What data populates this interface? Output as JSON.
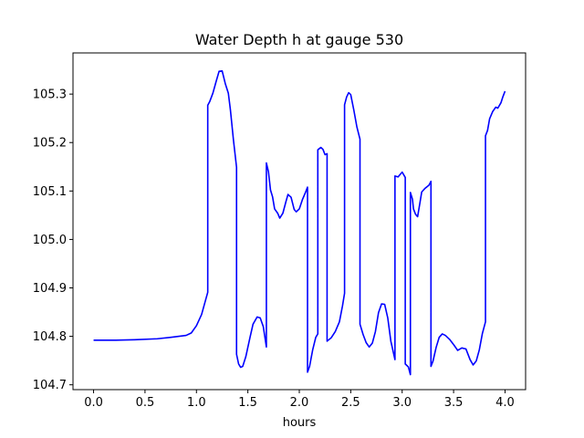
{
  "chart_data": {
    "type": "line",
    "title": "Water Depth h at gauge 530",
    "xlabel": "hours",
    "ylabel": "",
    "xlim": [
      -0.2,
      4.2
    ],
    "ylim": [
      104.69,
      105.385
    ],
    "xticks": [
      0.0,
      0.5,
      1.0,
      1.5,
      2.0,
      2.5,
      3.0,
      3.5,
      4.0
    ],
    "xtick_labels": [
      "0.0",
      "0.5",
      "1.0",
      "1.5",
      "2.0",
      "2.5",
      "3.0",
      "3.5",
      "4.0"
    ],
    "yticks": [
      104.7,
      104.8,
      104.9,
      105.0,
      105.1,
      105.2,
      105.3
    ],
    "ytick_labels": [
      "104.7",
      "104.8",
      "104.9",
      "105.0",
      "105.1",
      "105.2",
      "105.3"
    ],
    "grid": false,
    "legend": "none",
    "series": [
      {
        "color": "#0000ff",
        "points": [
          [
            0.0,
            104.792
          ],
          [
            0.2,
            104.792
          ],
          [
            0.4,
            104.793
          ],
          [
            0.62,
            104.795
          ],
          [
            0.75,
            104.798
          ],
          [
            0.9,
            104.802
          ],
          [
            0.95,
            104.807
          ],
          [
            1.0,
            104.822
          ],
          [
            1.05,
            104.845
          ],
          [
            1.11,
            104.891
          ],
          [
            1.11,
            105.277
          ],
          [
            1.13,
            105.285
          ],
          [
            1.16,
            105.302
          ],
          [
            1.19,
            105.325
          ],
          [
            1.22,
            105.347
          ],
          [
            1.25,
            105.348
          ],
          [
            1.28,
            105.322
          ],
          [
            1.31,
            105.302
          ],
          [
            1.33,
            105.268
          ],
          [
            1.36,
            105.205
          ],
          [
            1.39,
            105.149
          ],
          [
            1.39,
            104.763
          ],
          [
            1.41,
            104.743
          ],
          [
            1.43,
            104.736
          ],
          [
            1.45,
            104.738
          ],
          [
            1.48,
            104.758
          ],
          [
            1.52,
            104.797
          ],
          [
            1.55,
            104.825
          ],
          [
            1.59,
            104.84
          ],
          [
            1.62,
            104.838
          ],
          [
            1.65,
            104.82
          ],
          [
            1.68,
            104.778
          ],
          [
            1.68,
            105.158
          ],
          [
            1.7,
            105.14
          ],
          [
            1.72,
            105.102
          ],
          [
            1.74,
            105.088
          ],
          [
            1.76,
            105.063
          ],
          [
            1.79,
            105.054
          ],
          [
            1.81,
            105.044
          ],
          [
            1.84,
            105.054
          ],
          [
            1.87,
            105.078
          ],
          [
            1.89,
            105.093
          ],
          [
            1.92,
            105.087
          ],
          [
            1.95,
            105.062
          ],
          [
            1.97,
            105.057
          ],
          [
            2.0,
            105.063
          ],
          [
            2.03,
            105.082
          ],
          [
            2.06,
            105.097
          ],
          [
            2.08,
            105.108
          ],
          [
            2.08,
            104.726
          ],
          [
            2.1,
            104.738
          ],
          [
            2.13,
            104.772
          ],
          [
            2.16,
            104.798
          ],
          [
            2.18,
            104.805
          ],
          [
            2.18,
            105.185
          ],
          [
            2.21,
            105.19
          ],
          [
            2.23,
            105.186
          ],
          [
            2.25,
            105.175
          ],
          [
            2.27,
            105.177
          ],
          [
            2.27,
            104.79
          ],
          [
            2.31,
            104.797
          ],
          [
            2.35,
            104.81
          ],
          [
            2.39,
            104.83
          ],
          [
            2.42,
            104.863
          ],
          [
            2.44,
            104.889
          ],
          [
            2.44,
            105.278
          ],
          [
            2.46,
            105.294
          ],
          [
            2.48,
            105.303
          ],
          [
            2.5,
            105.299
          ],
          [
            2.53,
            105.267
          ],
          [
            2.56,
            105.232
          ],
          [
            2.59,
            105.207
          ],
          [
            2.59,
            104.825
          ],
          [
            2.62,
            104.804
          ],
          [
            2.65,
            104.787
          ],
          [
            2.68,
            104.778
          ],
          [
            2.71,
            104.786
          ],
          [
            2.74,
            104.81
          ],
          [
            2.77,
            104.849
          ],
          [
            2.8,
            104.867
          ],
          [
            2.83,
            104.866
          ],
          [
            2.86,
            104.838
          ],
          [
            2.89,
            104.79
          ],
          [
            2.93,
            104.752
          ],
          [
            2.93,
            105.131
          ],
          [
            2.96,
            105.129
          ],
          [
            2.98,
            105.134
          ],
          [
            3.0,
            105.139
          ],
          [
            3.03,
            105.128
          ],
          [
            3.03,
            104.743
          ],
          [
            3.06,
            104.737
          ],
          [
            3.08,
            104.721
          ],
          [
            3.08,
            105.097
          ],
          [
            3.1,
            105.083
          ],
          [
            3.11,
            105.063
          ],
          [
            3.13,
            105.052
          ],
          [
            3.15,
            105.047
          ],
          [
            3.17,
            105.072
          ],
          [
            3.19,
            105.098
          ],
          [
            3.22,
            105.105
          ],
          [
            3.26,
            105.112
          ],
          [
            3.28,
            105.12
          ],
          [
            3.28,
            104.738
          ],
          [
            3.3,
            104.749
          ],
          [
            3.33,
            104.777
          ],
          [
            3.36,
            104.798
          ],
          [
            3.39,
            104.805
          ],
          [
            3.42,
            104.802
          ],
          [
            3.46,
            104.794
          ],
          [
            3.5,
            104.783
          ],
          [
            3.54,
            104.771
          ],
          [
            3.58,
            104.776
          ],
          [
            3.62,
            104.774
          ],
          [
            3.66,
            104.752
          ],
          [
            3.69,
            104.741
          ],
          [
            3.72,
            104.749
          ],
          [
            3.75,
            104.772
          ],
          [
            3.78,
            104.806
          ],
          [
            3.81,
            104.83
          ],
          [
            3.81,
            105.214
          ],
          [
            3.83,
            105.225
          ],
          [
            3.85,
            105.249
          ],
          [
            3.88,
            105.264
          ],
          [
            3.91,
            105.273
          ],
          [
            3.93,
            105.271
          ],
          [
            3.96,
            105.282
          ],
          [
            3.98,
            105.295
          ],
          [
            4.0,
            105.306
          ]
        ]
      }
    ]
  }
}
